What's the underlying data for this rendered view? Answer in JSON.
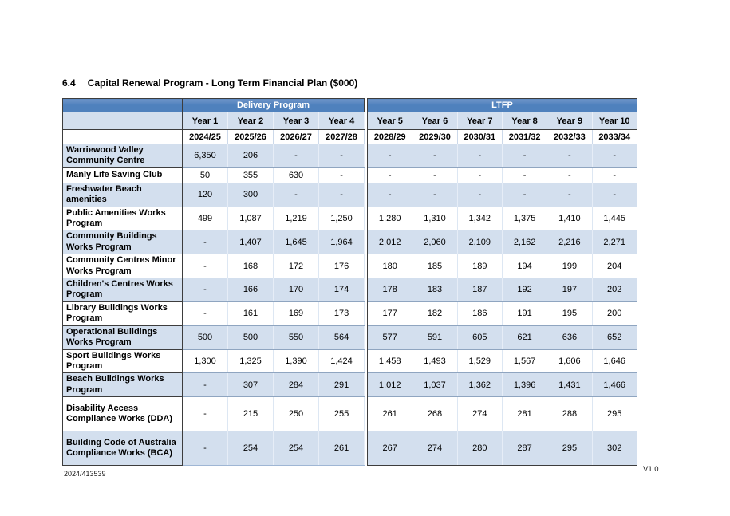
{
  "document": {
    "section_number": "6.4",
    "title": "Capital Renewal Program - Long Term Financial Plan ($000)",
    "footer_reference": "2024/413539",
    "version": "V1.0"
  },
  "table": {
    "groups": [
      {
        "label": "Delivery Program",
        "col_span": 4
      },
      {
        "label": "LTFP",
        "col_span": 6
      }
    ],
    "year_headers": [
      "Year 1",
      "Year 2",
      "Year 3",
      "Year 4",
      "Year 5",
      "Year 6",
      "Year 7",
      "Year 8",
      "Year 9",
      "Year 10"
    ],
    "financial_years": [
      "2024/25",
      "2025/26",
      "2026/27",
      "2027/28",
      "2028/29",
      "2029/30",
      "2030/31",
      "2031/32",
      "2032/33",
      "2033/34"
    ],
    "rows": [
      {
        "label": "Warriewood Valley Community Centre",
        "values": [
          "6,350",
          "206",
          "-",
          "-",
          "-",
          "-",
          "-",
          "-",
          "-",
          "-"
        ]
      },
      {
        "label": "Manly Life Saving Club",
        "values": [
          "50",
          "355",
          "630",
          "-",
          "-",
          "-",
          "-",
          "-",
          "-",
          "-"
        ]
      },
      {
        "label": "Freshwater Beach amenities",
        "values": [
          "120",
          "300",
          "-",
          "-",
          "-",
          "-",
          "-",
          "-",
          "-",
          "-"
        ]
      },
      {
        "label": "Public Amenities Works Program",
        "values": [
          "499",
          "1,087",
          "1,219",
          "1,250",
          "1,280",
          "1,310",
          "1,342",
          "1,375",
          "1,410",
          "1,445"
        ]
      },
      {
        "label": "Community Buildings Works Program",
        "values": [
          "-",
          "1,407",
          "1,645",
          "1,964",
          "2,012",
          "2,060",
          "2,109",
          "2,162",
          "2,216",
          "2,271"
        ]
      },
      {
        "label": "Community Centres Minor Works Program",
        "values": [
          "-",
          "168",
          "172",
          "176",
          "180",
          "185",
          "189",
          "194",
          "199",
          "204"
        ]
      },
      {
        "label": "Children's Centres Works Program",
        "values": [
          "-",
          "166",
          "170",
          "174",
          "178",
          "183",
          "187",
          "192",
          "197",
          "202"
        ]
      },
      {
        "label": "Library Buildings Works Program",
        "values": [
          "-",
          "161",
          "169",
          "173",
          "177",
          "182",
          "186",
          "191",
          "195",
          "200"
        ]
      },
      {
        "label": "Operational Buildings Works Program",
        "values": [
          "500",
          "500",
          "550",
          "564",
          "577",
          "591",
          "605",
          "621",
          "636",
          "652"
        ]
      },
      {
        "label": "Sport Buildings Works Program",
        "values": [
          "1,300",
          "1,325",
          "1,390",
          "1,424",
          "1,458",
          "1,493",
          "1,529",
          "1,567",
          "1,606",
          "1,646"
        ]
      },
      {
        "label": "Beach Buildings Works Program",
        "values": [
          "-",
          "307",
          "284",
          "291",
          "1,012",
          "1,037",
          "1,362",
          "1,396",
          "1,431",
          "1,466"
        ]
      },
      {
        "label": "Disability Access Compliance Works (DDA)",
        "values": [
          "-",
          "215",
          "250",
          "255",
          "261",
          "268",
          "274",
          "281",
          "288",
          "295"
        ]
      },
      {
        "label": "Building Code of Australia Compliance Works (BCA)",
        "values": [
          "-",
          "254",
          "254",
          "261",
          "267",
          "274",
          "280",
          "287",
          "295",
          "302"
        ]
      }
    ],
    "colors": {
      "header_band_blue": "#4f81bd",
      "header_band_text": "#ffffff",
      "row_shade_blue": "#d3dfee",
      "grid_line_blue": "#8fa5c0",
      "border_dark": "#3d3d3d"
    }
  }
}
